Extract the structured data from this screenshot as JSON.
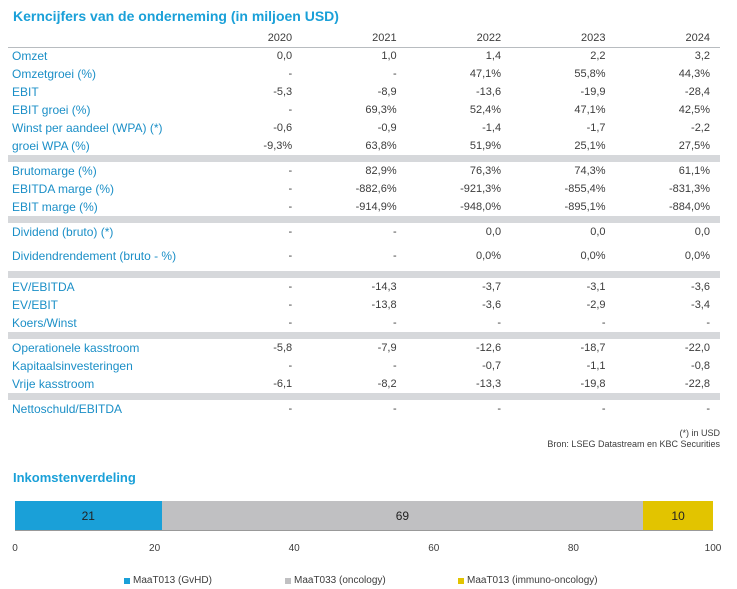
{
  "title": "Kerncijfers van de onderneming (in miljoen USD)",
  "years": [
    "2020",
    "2021",
    "2022",
    "2023",
    "2024"
  ],
  "rows": [
    {
      "label": "Omzet",
      "v": [
        "0,0",
        "1,0",
        "1,4",
        "2,2",
        "3,2"
      ]
    },
    {
      "label": "Omzetgroei (%)",
      "v": [
        "-",
        "-",
        "47,1%",
        "55,8%",
        "44,3%"
      ]
    },
    {
      "label": "EBIT",
      "v": [
        "-5,3",
        "-8,9",
        "-13,6",
        "-19,9",
        "-28,4"
      ]
    },
    {
      "label": "EBIT groei (%)",
      "v": [
        "-",
        "69,3%",
        "52,4%",
        "47,1%",
        "42,5%"
      ]
    },
    {
      "label": "Winst per aandeel (WPA) (*)",
      "v": [
        "-0,6",
        "-0,9",
        "-1,4",
        "-1,7",
        "-2,2"
      ]
    },
    {
      "label": "groei WPA (%)",
      "v": [
        "-9,3%",
        "63,8%",
        "51,9%",
        "25,1%",
        "27,5%"
      ]
    },
    {
      "label": "Brutomarge (%)",
      "v": [
        "-",
        "82,9%",
        "76,3%",
        "74,3%",
        "61,1%"
      ]
    },
    {
      "label": "EBITDA marge (%)",
      "v": [
        "-",
        "-882,6%",
        "-921,3%",
        "-855,4%",
        "-831,3%"
      ]
    },
    {
      "label": "EBIT marge (%)",
      "v": [
        "-",
        "-914,9%",
        "-948,0%",
        "-895,1%",
        "-884,0%"
      ]
    },
    {
      "label": "Dividend (bruto) (*)",
      "v": [
        "-",
        "-",
        "0,0",
        "0,0",
        "0,0"
      ]
    },
    {
      "label": "Dividendrendement (bruto - %)",
      "v": [
        "-",
        "-",
        "0,0%",
        "0,0%",
        "0,0%"
      ]
    },
    {
      "label": "EV/EBITDA",
      "v": [
        "-",
        "-14,3",
        "-3,7",
        "-3,1",
        "-3,6"
      ]
    },
    {
      "label": "EV/EBIT",
      "v": [
        "-",
        "-13,8",
        "-3,6",
        "-2,9",
        "-3,4"
      ]
    },
    {
      "label": "Koers/Winst",
      "v": [
        "-",
        "-",
        "-",
        "-",
        "-"
      ]
    },
    {
      "label": "Operationele kasstroom",
      "v": [
        "-5,8",
        "-7,9",
        "-12,6",
        "-18,7",
        "-22,0"
      ]
    },
    {
      "label": "Kapitaalsinvesteringen",
      "v": [
        "-",
        "-",
        "-0,7",
        "-1,1",
        "-0,8"
      ]
    },
    {
      "label": "Vrije kasstroom",
      "v": [
        "-6,1",
        "-8,2",
        "-13,3",
        "-19,8",
        "-22,8"
      ]
    },
    {
      "label": "Nettoschuld/EBITDA",
      "v": [
        "-",
        "-",
        "-",
        "-",
        "-"
      ]
    }
  ],
  "notes": {
    "in_usd": "(*) in USD",
    "source": "Bron: LSEG Datastream en KBC Securities"
  },
  "revenue_section": {
    "title": "Inkomstenverdeling"
  },
  "chart_data": {
    "type": "bar",
    "orientation": "horizontal-stacked",
    "title": "Inkomstenverdeling",
    "xlim": [
      0,
      100
    ],
    "ticks": [
      "0",
      "20",
      "40",
      "60",
      "80",
      "100"
    ],
    "legend_position": "bottom",
    "series": [
      {
        "name": "MaaT013 (GvHD)",
        "value": 21,
        "color": "#1aa0d8"
      },
      {
        "name": "MaaT033 (oncology)",
        "value": 69,
        "color": "#c0c0c2"
      },
      {
        "name": "MaaT013 (immuno-oncology)",
        "value": 10,
        "color": "#e2c400"
      }
    ]
  },
  "colors": {
    "heading": "#1aa0d8",
    "label": "#1b8fc7",
    "separator": "#d6d8db"
  }
}
